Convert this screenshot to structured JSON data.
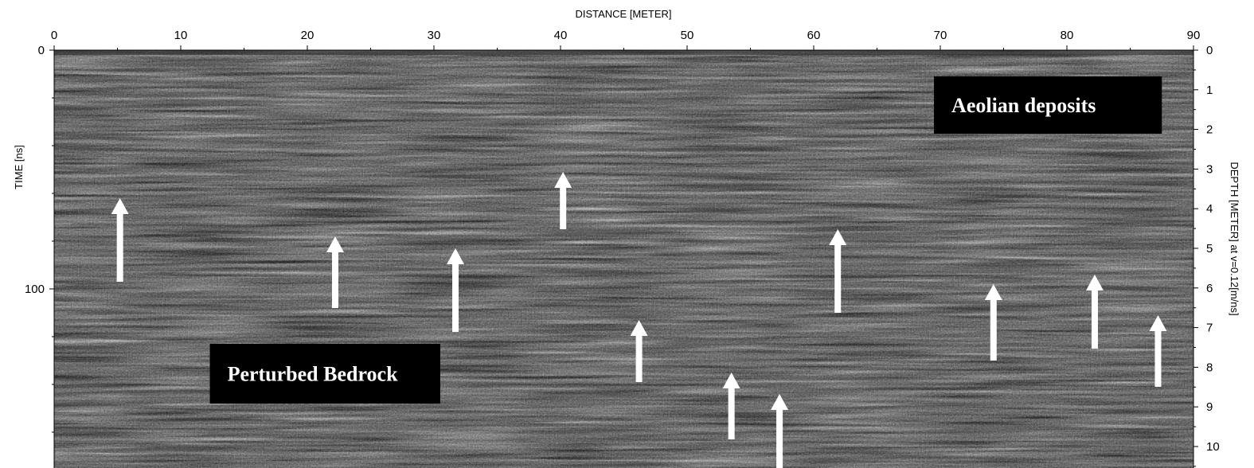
{
  "chart_data": {
    "type": "radargram",
    "xlabel": "DISTANCE [METER]",
    "ylabel": "TIME [ns]",
    "y2label": "DEPTH [METER] at v=0.12[m/ns]",
    "xlim": [
      0,
      90
    ],
    "ylim": [
      0,
      175
    ],
    "y2lim": [
      0,
      10.5
    ],
    "x_ticks": [
      0,
      10,
      20,
      30,
      40,
      50,
      60,
      70,
      80,
      90
    ],
    "y_ticks": [
      0,
      100
    ],
    "y2_ticks": [
      0,
      1,
      2,
      3,
      4,
      5,
      6,
      7,
      8,
      9,
      10
    ],
    "grid": false,
    "annotations": [
      {
        "text": "Aeolian deposits",
        "box_x": [
          69.5,
          87.5
        ],
        "box_time": [
          11,
          35
        ]
      },
      {
        "text": "Perturbed Bedrock",
        "box_x": [
          12.3,
          30.5
        ],
        "box_time": [
          123,
          148
        ]
      }
    ],
    "arrows": [
      {
        "distance": 5.2,
        "time_tip": 62,
        "time_tail": 97
      },
      {
        "distance": 22.2,
        "time_tip": 78,
        "time_tail": 108
      },
      {
        "distance": 31.7,
        "time_tip": 83,
        "time_tail": 118
      },
      {
        "distance": 40.2,
        "time_tip": 51,
        "time_tail": 75
      },
      {
        "distance": 46.2,
        "time_tip": 113,
        "time_tail": 139
      },
      {
        "distance": 53.5,
        "time_tip": 135,
        "time_tail": 163
      },
      {
        "distance": 57.3,
        "time_tip": 144,
        "time_tail": 175
      },
      {
        "distance": 61.9,
        "time_tip": 75,
        "time_tail": 110
      },
      {
        "distance": 74.2,
        "time_tip": 98,
        "time_tail": 130
      },
      {
        "distance": 82.2,
        "time_tip": 94,
        "time_tail": 125
      },
      {
        "distance": 87.2,
        "time_tip": 111,
        "time_tail": 141
      }
    ]
  }
}
